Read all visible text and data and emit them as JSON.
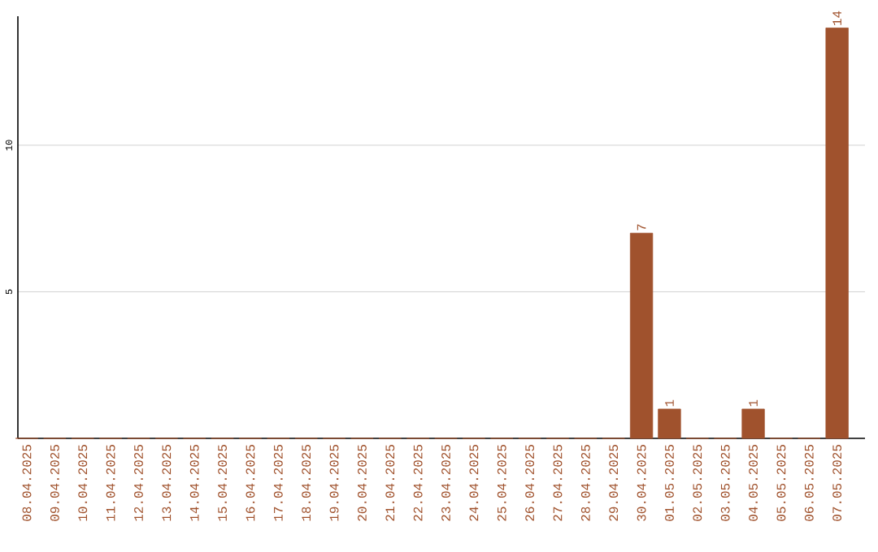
{
  "chart_data": {
    "type": "bar",
    "categories": [
      "08.04.2025",
      "09.04.2025",
      "10.04.2025",
      "11.04.2025",
      "12.04.2025",
      "13.04.2025",
      "14.04.2025",
      "15.04.2025",
      "16.04.2025",
      "17.04.2025",
      "18.04.2025",
      "19.04.2025",
      "20.04.2025",
      "21.04.2025",
      "22.04.2025",
      "23.04.2025",
      "24.04.2025",
      "25.04.2025",
      "26.04.2025",
      "27.04.2025",
      "28.04.2025",
      "29.04.2025",
      "30.04.2025",
      "01.05.2025",
      "02.05.2025",
      "03.05.2025",
      "04.05.2025",
      "05.05.2025",
      "06.05.2025",
      "07.05.2025"
    ],
    "values": [
      0,
      0,
      0,
      0,
      0,
      0,
      0,
      0,
      0,
      0,
      0,
      0,
      0,
      0,
      0,
      0,
      0,
      0,
      0,
      0,
      0,
      0,
      7,
      1,
      0,
      0,
      1,
      0,
      0,
      14
    ],
    "value_labels": [
      null,
      null,
      null,
      null,
      null,
      null,
      null,
      null,
      null,
      null,
      null,
      null,
      null,
      null,
      null,
      null,
      null,
      null,
      null,
      null,
      null,
      null,
      "7",
      "1",
      null,
      null,
      "1",
      null,
      null,
      "14"
    ],
    "color": "#a0522d",
    "ylim": [
      0,
      14.4
    ],
    "yticks": [
      5,
      10
    ],
    "grid": "y"
  }
}
